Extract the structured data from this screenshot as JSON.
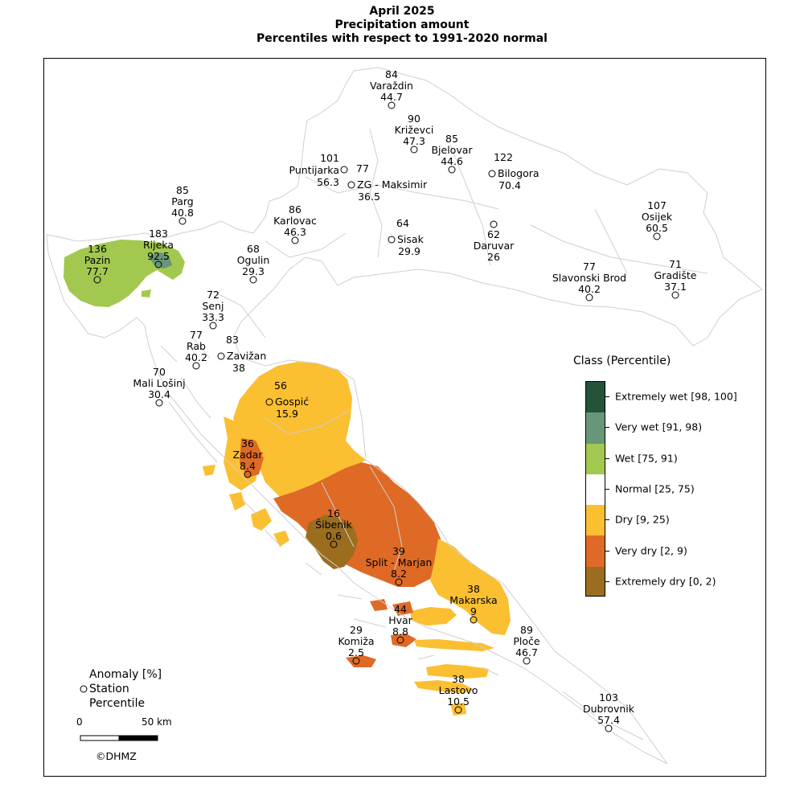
{
  "title": {
    "line1": "April 2025",
    "line2": "Precipitation amount",
    "line3": "Percentiles with respect to 1991-2020 normal"
  },
  "legend": {
    "title": "Class (Percentile)",
    "classes": [
      {
        "label": "Extremely wet [98, 100]",
        "color": "#24533a"
      },
      {
        "label": "Very wet [91, 98)",
        "color": "#689678"
      },
      {
        "label": "Wet [75, 91)",
        "color": "#a2c850"
      },
      {
        "label": "Normal [25, 75)",
        "color": "#ffffff"
      },
      {
        "label": "Dry [9, 25)",
        "color": "#fbbf32"
      },
      {
        "label": "Very dry [2, 9)",
        "color": "#df6a26"
      },
      {
        "label": "Extremely dry [0, 2)",
        "color": "#9b6d1f"
      }
    ]
  },
  "station_key": {
    "line1": "Anomaly [%]",
    "line2": "Station",
    "line3": "Percentile"
  },
  "scale_bar": {
    "start": "0",
    "end": "50 km"
  },
  "copyright": "©DHMZ",
  "stations": [
    {
      "name": "Varaždin",
      "anomaly": "84",
      "percentile": "44.7",
      "class": "normal"
    },
    {
      "name": "Križevci",
      "anomaly": "90",
      "percentile": "47.3",
      "class": "normal"
    },
    {
      "name": "Bjelovar",
      "anomaly": "85",
      "percentile": "44.6",
      "class": "normal"
    },
    {
      "name": "Puntijarka",
      "anomaly": "101",
      "percentile": "56.3",
      "class": "normal"
    },
    {
      "name": "ZG - Maksimir",
      "anomaly": "77",
      "percentile": "36.5",
      "class": "normal"
    },
    {
      "name": "Bilogora",
      "anomaly": "122",
      "percentile": "70.4",
      "class": "normal"
    },
    {
      "name": "Parg",
      "anomaly": "85",
      "percentile": "40.8",
      "class": "normal"
    },
    {
      "name": "Karlovac",
      "anomaly": "86",
      "percentile": "46.3",
      "class": "normal"
    },
    {
      "name": "Sisak",
      "anomaly": "64",
      "percentile": "29.9",
      "class": "normal"
    },
    {
      "name": "Daruvar",
      "anomaly": "62",
      "percentile": "26",
      "class": "normal"
    },
    {
      "name": "Osijek",
      "anomaly": "107",
      "percentile": "60.5",
      "class": "normal"
    },
    {
      "name": "Rijeka",
      "anomaly": "183",
      "percentile": "92.5",
      "class": "very-wet"
    },
    {
      "name": "Pazin",
      "anomaly": "136",
      "percentile": "77.7",
      "class": "wet"
    },
    {
      "name": "Ogulin",
      "anomaly": "68",
      "percentile": "29.3",
      "class": "normal"
    },
    {
      "name": "Slavonski Brod",
      "anomaly": "77",
      "percentile": "40.2",
      "class": "normal"
    },
    {
      "name": "Gradište",
      "anomaly": "71",
      "percentile": "37.1",
      "class": "normal"
    },
    {
      "name": "Senj",
      "anomaly": "72",
      "percentile": "33.3",
      "class": "normal"
    },
    {
      "name": "Rab",
      "anomaly": "77",
      "percentile": "40.2",
      "class": "normal"
    },
    {
      "name": "Zavižan",
      "anomaly": "83",
      "percentile": "38",
      "class": "normal"
    },
    {
      "name": "Mali Lošinj",
      "anomaly": "70",
      "percentile": "30.4",
      "class": "normal"
    },
    {
      "name": "Gospić",
      "anomaly": "56",
      "percentile": "15.9",
      "class": "dry"
    },
    {
      "name": "Zadar",
      "anomaly": "36",
      "percentile": "8.4",
      "class": "very-dry"
    },
    {
      "name": "Šibenik",
      "anomaly": "16",
      "percentile": "0.6",
      "class": "extremely-dry"
    },
    {
      "name": "Split - Marjan",
      "anomaly": "39",
      "percentile": "8.2",
      "class": "very-dry"
    },
    {
      "name": "Makarska",
      "anomaly": "38",
      "percentile": "9",
      "class": "dry"
    },
    {
      "name": "Hvar",
      "anomaly": "44",
      "percentile": "8.8",
      "class": "very-dry"
    },
    {
      "name": "Komiža",
      "anomaly": "29",
      "percentile": "2.5",
      "class": "very-dry"
    },
    {
      "name": "Ploče",
      "anomaly": "89",
      "percentile": "46.7",
      "class": "normal"
    },
    {
      "name": "Lastovo",
      "anomaly": "38",
      "percentile": "10.5",
      "class": "dry"
    },
    {
      "name": "Dubrovnik",
      "anomaly": "103",
      "percentile": "57.4",
      "class": "normal"
    }
  ]
}
